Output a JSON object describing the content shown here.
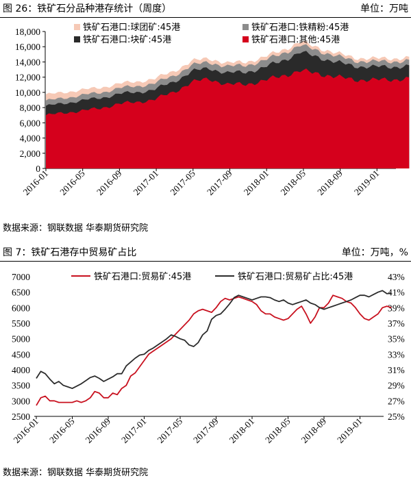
{
  "figure1": {
    "title": "图 26：铁矿石分品种港存统计（周度）",
    "unit": "单位：万吨",
    "source": "数据来源：钢联数据 华泰期货研究院"
  },
  "figure2": {
    "title": "图 7：铁矿石港存中贸易矿占比",
    "unit": "单位：万吨，%",
    "source": "数据来源：钢联数据 华泰期货研究院"
  },
  "colors": {
    "pellet": "#f6c9b6",
    "fines": "#8c8c8c",
    "lump": "#2a2a2a",
    "other": "#d5001c",
    "trade": "#c8101e",
    "ratio": "#2b2b2b"
  },
  "chart_data": [
    {
      "type": "area",
      "stacked": true,
      "x_ticks": [
        "2016-01",
        "2016-05",
        "2016-09",
        "2017-01",
        "2017-05",
        "2017-09",
        "2018-01",
        "2018-05",
        "2018-09",
        "2019-01"
      ],
      "ylim": [
        0,
        18000
      ],
      "y_ticks": [
        "0",
        "2,000",
        "4,000",
        "6,000",
        "8,000",
        "10,000",
        "12,000",
        "14,000",
        "16,000",
        "18,000"
      ],
      "legend_position": "top",
      "x": [
        "2016-01",
        "2016-03",
        "2016-05",
        "2016-07",
        "2016-09",
        "2016-11",
        "2017-01",
        "2017-03",
        "2017-05",
        "2017-07",
        "2017-09",
        "2017-11",
        "2018-01",
        "2018-03",
        "2018-05",
        "2018-07",
        "2018-09",
        "2018-11",
        "2019-01",
        "2019-03",
        "2019-04"
      ],
      "series": [
        {
          "name": "铁矿石港口:其他:45港",
          "color": "#d5001c",
          "values": [
            7000,
            7300,
            7600,
            7900,
            8500,
            8700,
            9100,
            10000,
            11300,
            11800,
            11000,
            11100,
            11500,
            12200,
            12800,
            12500,
            12000,
            11700,
            11600,
            11700,
            11800
          ]
        },
        {
          "name": "铁矿石港口:块矿:45港",
          "color": "#2a2a2a",
          "values": [
            1200,
            1250,
            1350,
            1350,
            1300,
            1300,
            1300,
            1350,
            1400,
            1400,
            1500,
            1600,
            1700,
            2000,
            2400,
            2200,
            1900,
            1800,
            1700,
            1700,
            1600
          ]
        },
        {
          "name": "铁矿石港口:铁精粉:45港",
          "color": "#8c8c8c",
          "values": [
            700,
            700,
            700,
            700,
            750,
            800,
            800,
            800,
            800,
            800,
            850,
            900,
            900,
            950,
            900,
            850,
            800,
            700,
            700,
            700,
            700
          ]
        },
        {
          "name": "铁矿石港口:球团矿:45港",
          "color": "#f6c9b6",
          "values": [
            800,
            750,
            700,
            650,
            600,
            600,
            600,
            600,
            550,
            500,
            450,
            450,
            450,
            450,
            450,
            400,
            400,
            400,
            400,
            400,
            400
          ]
        }
      ]
    },
    {
      "type": "line",
      "x_ticks": [
        "2016-01",
        "2016-05",
        "2016-09",
        "2017-01",
        "2017-05",
        "2017-09",
        "2018-01",
        "2018-05",
        "2018-09",
        "2019-01"
      ],
      "ylim_left": [
        2500,
        7000
      ],
      "y_ticks_left": [
        "2500",
        "3000",
        "3500",
        "4000",
        "4500",
        "5000",
        "5500",
        "6000",
        "6500",
        "7000"
      ],
      "ylim_right": [
        25,
        43
      ],
      "y_ticks_right": [
        "25%",
        "27%",
        "29%",
        "31%",
        "33%",
        "35%",
        "37%",
        "39%",
        "41%",
        "43%"
      ],
      "legend_position": "top",
      "series": [
        {
          "name": "铁矿石港口:贸易矿:45港",
          "axis": "left",
          "color": "#c8101e",
          "x": [
            0,
            0.5,
            1,
            1.5,
            2,
            2.5,
            3,
            3.5,
            4,
            4.5,
            5,
            5.5,
            6,
            6.5,
            7,
            7.5,
            8,
            8.5,
            9,
            9.5,
            10,
            10.5,
            11,
            11.5,
            12,
            12.5,
            13,
            13.5,
            14,
            14.5,
            15,
            15.5,
            16,
            16.5,
            17,
            17.5,
            18,
            18.5,
            19,
            19.5,
            20,
            20.5,
            21,
            21.5,
            22,
            22.5,
            23,
            23.5,
            24,
            24.5,
            25,
            25.5,
            26,
            26.5,
            27,
            27.5,
            28,
            28.5,
            29,
            29.5,
            30,
            30.5,
            31,
            31.5,
            32,
            32.5,
            33,
            33.5,
            34,
            34.5,
            35,
            35.5,
            36,
            36.5,
            37,
            37.5,
            38,
            38.5,
            39,
            39.5
          ],
          "values": [
            2850,
            3100,
            3150,
            3000,
            3000,
            2950,
            2950,
            2950,
            2950,
            3000,
            2950,
            3000,
            3100,
            3300,
            3250,
            3100,
            3100,
            3250,
            3200,
            3400,
            3500,
            3800,
            3900,
            4100,
            4300,
            4500,
            4600,
            4700,
            4800,
            4900,
            5000,
            5150,
            5300,
            5450,
            5600,
            5800,
            5900,
            5950,
            5900,
            5850,
            6000,
            6200,
            6300,
            6250,
            6300,
            6350,
            6300,
            6250,
            6200,
            6100,
            5900,
            5800,
            5800,
            5700,
            5650,
            5600,
            5650,
            5800,
            5950,
            6050,
            5800,
            5500,
            5700,
            6000,
            6000,
            6150,
            6400,
            6350,
            6300,
            6200,
            6150,
            6000,
            5800,
            5650,
            5600,
            5700,
            5800,
            6000,
            6050,
            6000
          ]
        },
        {
          "name": "铁矿石港口:贸易矿占比:45港",
          "axis": "right",
          "color": "#2b2b2b",
          "x": [
            0,
            0.5,
            1,
            1.5,
            2,
            2.5,
            3,
            3.5,
            4,
            4.5,
            5,
            5.5,
            6,
            6.5,
            7,
            7.5,
            8,
            8.5,
            9,
            9.5,
            10,
            10.5,
            11,
            11.5,
            12,
            12.5,
            13,
            13.5,
            14,
            14.5,
            15,
            15.5,
            16,
            16.5,
            17,
            17.5,
            18,
            18.5,
            19,
            19.5,
            20,
            20.5,
            21,
            21.5,
            22,
            22.5,
            23,
            23.5,
            24,
            24.5,
            25,
            25.5,
            26,
            26.5,
            27,
            27.5,
            28,
            28.5,
            29,
            29.5,
            30,
            30.5,
            31,
            31.5,
            32,
            32.5,
            33,
            33.5,
            34,
            34.5,
            35,
            35.5,
            36,
            36.5,
            37,
            37.5,
            38,
            38.5,
            39,
            39.5
          ],
          "values": [
            29.9,
            30.8,
            30.5,
            29.8,
            29.2,
            29.5,
            29.0,
            28.8,
            28.6,
            28.9,
            29.2,
            29.6,
            30.0,
            30.2,
            29.9,
            29.5,
            29.8,
            30.1,
            30.5,
            30.5,
            31.5,
            32.0,
            32.5,
            32.9,
            33.0,
            33.5,
            33.8,
            34.2,
            34.6,
            35.0,
            35.5,
            35.3,
            35.0,
            34.8,
            34.2,
            34.0,
            34.5,
            35.5,
            36.0,
            37.5,
            38.0,
            38.2,
            38.8,
            39.5,
            40.3,
            40.6,
            40.4,
            40.2,
            40.0,
            40.2,
            40.4,
            40.4,
            40.3,
            40.0,
            39.8,
            40.0,
            39.6,
            39.4,
            39.6,
            39.8,
            40.0,
            39.6,
            39.4,
            39.0,
            38.8,
            39.0,
            39.2,
            39.4,
            39.6,
            39.8,
            40.0,
            40.3,
            40.6,
            40.6,
            40.4,
            40.7,
            41.0,
            41.2,
            40.8,
            40.9
          ]
        }
      ]
    }
  ]
}
